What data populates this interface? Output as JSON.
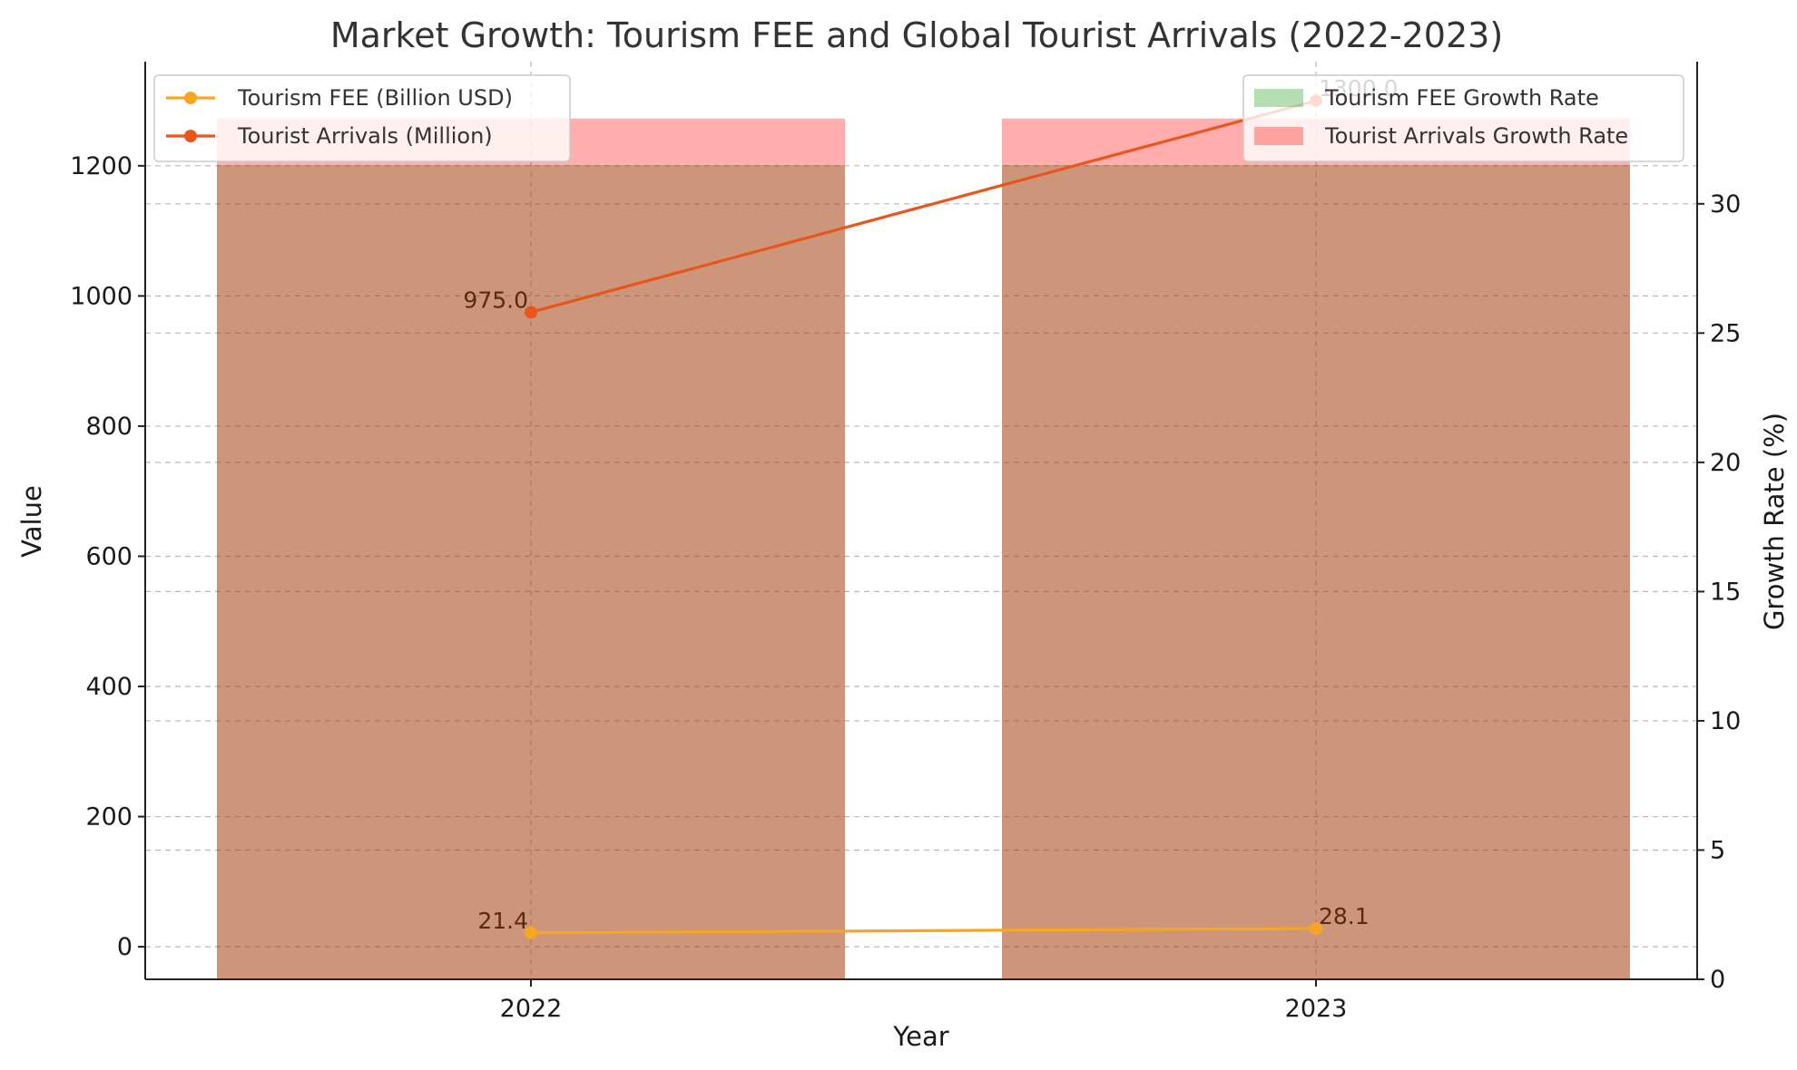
{
  "chart_data": {
    "type": "bar",
    "title": "Market Growth: Tourism FEE and Global Tourist Arrivals (2022-2023)",
    "xlabel": "Year",
    "ylabel": "Value",
    "y2label": "Growth Rate (%)",
    "categories": [
      "2022",
      "2023"
    ],
    "ylim": [
      -50,
      1360
    ],
    "y2lim": [
      0,
      35.5
    ],
    "yticks": [
      0,
      200,
      400,
      600,
      800,
      1000,
      1200
    ],
    "y2ticks": [
      0,
      5,
      10,
      15,
      20,
      25,
      30
    ],
    "grid": true,
    "line_series": [
      {
        "name": "Tourism FEE (Billion USD)",
        "values": [
          21.4,
          28.1
        ],
        "labels": [
          "21.4",
          "28.1"
        ],
        "color": "#f5a623"
      },
      {
        "name": "Tourist Arrivals (Million)",
        "values": [
          975.0,
          1300.0
        ],
        "labels": [
          "975.0",
          "1300.0"
        ],
        "color": "#e8561e"
      }
    ],
    "bar_series": [
      {
        "name": "Tourism FEE Growth Rate",
        "values": [
          31.5,
          31.5
        ],
        "color": "#2ca02c",
        "alpha": 0.35
      },
      {
        "name": "Tourist Arrivals Growth Rate",
        "values": [
          33.3,
          33.3
        ],
        "color": "#ff0000",
        "alpha": 0.32
      }
    ],
    "legend_left_position": "top-left",
    "legend_right_position": "top-right"
  }
}
